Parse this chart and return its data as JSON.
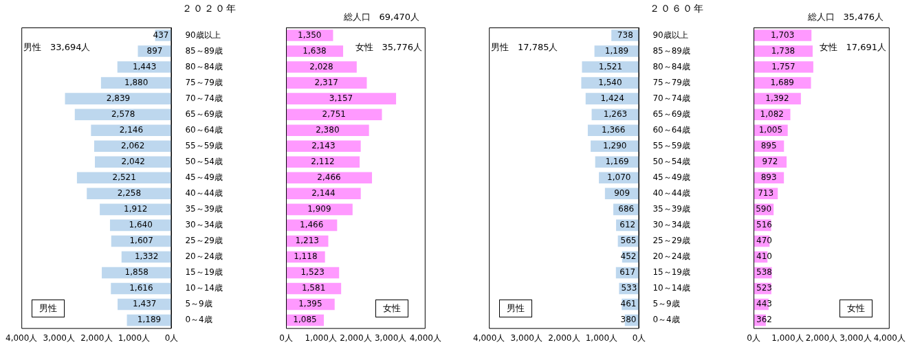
{
  "chart_data": [
    {
      "type": "bar",
      "orientation": "horizontal",
      "title": "２０２０年",
      "annotations": [
        "男性　33,694人",
        "男性"
      ],
      "categories": [
        "90歳以上",
        "85～89歳",
        "80～84歳",
        "75～79歳",
        "70～74歳",
        "65～69歳",
        "60～64歳",
        "55～59歳",
        "50～54歳",
        "45～49歳",
        "40～44歳",
        "35～39歳",
        "30～34歳",
        "25～29歳",
        "20～24歳",
        "15～19歳",
        "10～14歳",
        "5～9歳",
        "0～4歳"
      ],
      "color": "#bdd7ee",
      "values": [
        437,
        897,
        1443,
        1880,
        2839,
        2578,
        2146,
        2062,
        2042,
        2521,
        2258,
        1912,
        1640,
        1607,
        1332,
        1858,
        1616,
        1437,
        1189
      ],
      "value_labels": [
        "437",
        "897",
        "1,443",
        "1,880",
        "2,839",
        "2,578",
        "2,146",
        "2,062",
        "2,042",
        "2,521",
        "2,258",
        "1,912",
        "1,640",
        "1,607",
        "1,332",
        "1,858",
        "1,616",
        "1,437",
        "1,189"
      ],
      "xlim": [
        4000,
        0
      ],
      "xticks": [
        {
          "value": 4000,
          "label": "4,000人"
        },
        {
          "value": 3000,
          "label": "3,000人"
        },
        {
          "value": 2000,
          "label": "2,000人"
        },
        {
          "value": 1000,
          "label": "1,000人"
        },
        {
          "value": 0,
          "label": "0人"
        }
      ]
    },
    {
      "type": "bar",
      "orientation": "horizontal",
      "subtitle": "総人口　69,470人",
      "annotations": [
        "女性　35,776人",
        "女性"
      ],
      "categories": [
        null,
        null,
        null,
        null,
        null,
        null,
        null,
        null,
        null,
        null,
        null,
        null,
        null,
        null,
        null,
        null,
        null,
        null,
        null
      ],
      "color": "#ff99ff",
      "values": [
        1350,
        1638,
        2028,
        2317,
        3157,
        2751,
        2380,
        2143,
        2112,
        2466,
        2144,
        1909,
        1466,
        1213,
        1118,
        1523,
        1581,
        1395,
        1085
      ],
      "value_labels": [
        "1,350",
        "1,638",
        "2,028",
        "2,317",
        "3,157",
        "2,751",
        "2,380",
        "2,143",
        "2,112",
        "2,466",
        "2,144",
        "1,909",
        "1,466",
        "1,213",
        "1,118",
        "1,523",
        "1,581",
        "1,395",
        "1,085"
      ],
      "xlim": [
        0,
        4000
      ],
      "xticks": [
        {
          "value": 0,
          "label": "0人"
        },
        {
          "value": 1000,
          "label": "1,000人"
        },
        {
          "value": 2000,
          "label": "2,000人"
        },
        {
          "value": 3000,
          "label": "3,000人"
        },
        {
          "value": 4000,
          "label": "4,000人"
        }
      ]
    },
    {
      "type": "bar",
      "orientation": "horizontal",
      "title": "２０６０年",
      "annotations": [
        "男性　17,785人",
        "男性"
      ],
      "categories": [
        "90歳以上",
        "85～89歳",
        "80～84歳",
        "75～79歳",
        "70～74歳",
        "65～69歳",
        "60～64歳",
        "55～59歳",
        "50～54歳",
        "45～49歳",
        "40～44歳",
        "35～39歳",
        "30～34歳",
        "25～29歳",
        "20～24歳",
        "15～19歳",
        "10～14歳",
        "5～9歳",
        "0～4歳"
      ],
      "color": "#bdd7ee",
      "values": [
        738,
        1189,
        1521,
        1540,
        1424,
        1263,
        1366,
        1290,
        1169,
        1070,
        909,
        686,
        612,
        565,
        452,
        617,
        533,
        461,
        380
      ],
      "value_labels": [
        "738",
        "1,189",
        "1,521",
        "1,540",
        "1,424",
        "1,263",
        "1,366",
        "1,290",
        "1,169",
        "1,070",
        "909",
        "686",
        "612",
        "565",
        "452",
        "617",
        "533",
        "461",
        "380"
      ],
      "xlim": [
        4000,
        0
      ],
      "xticks": [
        {
          "value": 4000,
          "label": "4,000人"
        },
        {
          "value": 3000,
          "label": "3,000人"
        },
        {
          "value": 2000,
          "label": "2,000人"
        },
        {
          "value": 1000,
          "label": "1,000人"
        },
        {
          "value": 0,
          "label": "0人"
        }
      ]
    },
    {
      "type": "bar",
      "orientation": "horizontal",
      "subtitle": "総人口　35,476人",
      "annotations": [
        "女性　17,691人",
        "女性"
      ],
      "categories": [
        null,
        null,
        null,
        null,
        null,
        null,
        null,
        null,
        null,
        null,
        null,
        null,
        null,
        null,
        null,
        null,
        null,
        null,
        null
      ],
      "color": "#ff99ff",
      "values": [
        1703,
        1738,
        1757,
        1689,
        1392,
        1082,
        1005,
        895,
        972,
        893,
        713,
        590,
        516,
        470,
        410,
        538,
        523,
        443,
        362
      ],
      "value_labels": [
        "1,703",
        "1,738",
        "1,757",
        "1,689",
        "1,392",
        "1,082",
        "1,005",
        "895",
        "972",
        "893",
        "713",
        "590",
        "516",
        "470",
        "410",
        "538",
        "523",
        "443",
        "362"
      ],
      "xlim": [
        0,
        4000
      ],
      "xticks": [
        {
          "value": 0,
          "label": "0人"
        },
        {
          "value": 1000,
          "label": "1,000人"
        },
        {
          "value": 2000,
          "label": "2,000人"
        },
        {
          "value": 3000,
          "label": "3,000人"
        },
        {
          "value": 4000,
          "label": "4,000人"
        }
      ]
    }
  ]
}
